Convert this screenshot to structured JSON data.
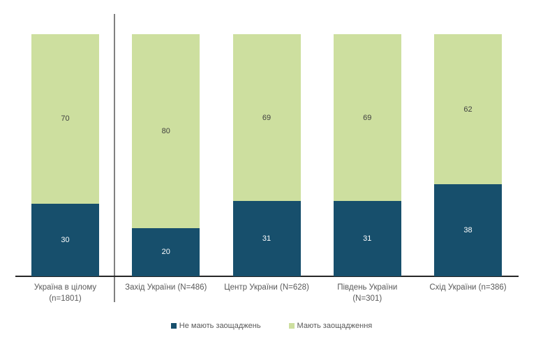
{
  "chart_data": {
    "type": "bar",
    "stacked": true,
    "orientation": "vertical",
    "title": "",
    "categories": [
      "Україна в цілому (n=1801)",
      "Захід України (N=486)",
      "Центр України (N=628)",
      "Південь України (N=301)",
      "Схід України (n=386)"
    ],
    "category_label_lines": [
      [
        "Україна в цілому",
        "(n=1801)"
      ],
      [
        "Захід України (N=486)"
      ],
      [
        "Центр України (N=628)"
      ],
      [
        "Південь України",
        "(N=301)"
      ],
      [
        "Схід України (n=386)"
      ]
    ],
    "series": [
      {
        "name": "Не мають заощаджень",
        "color": "#174F6C",
        "values": [
          30,
          20,
          31,
          31,
          38
        ],
        "value_label_color": "#FFFFFF"
      },
      {
        "name": "Мають заощадження",
        "color": "#CDDF9F",
        "values": [
          70,
          80,
          69,
          69,
          62
        ],
        "value_label_color": "#3F3F3F"
      }
    ],
    "ylim": [
      0,
      100
    ],
    "grid": false,
    "legend_position": "bottom",
    "separator_after_first_category": true
  },
  "style_colors": {
    "category_label": "#595959",
    "legend_text": "#595959",
    "axis_line": "#262626",
    "divider": "#808080"
  }
}
